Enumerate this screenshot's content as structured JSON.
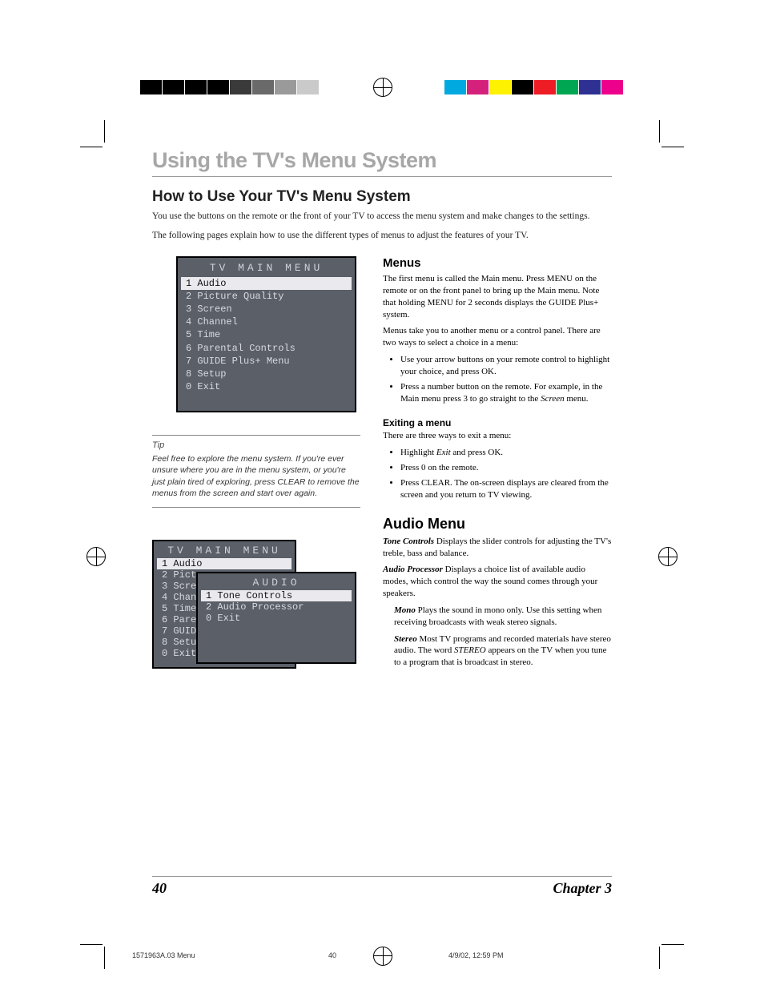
{
  "reg_colors_left": [
    "#000000",
    "#000000",
    "#000000",
    "#000000",
    "#3a3a3a",
    "#6a6a6a",
    "#9a9a9a",
    "#cacaca"
  ],
  "reg_colors_right": [
    "#00a9e0",
    "#d4227c",
    "#fff200",
    "#000000",
    "#ee1c25",
    "#00a651",
    "#2e3192",
    "#ec008c"
  ],
  "chapter_title": "Using the TV's Menu System",
  "section_title": "How to Use Your TV's Menu System",
  "intro_p1": "You use the buttons on the remote or the front of your TV to access the menu system and make changes to the settings.",
  "intro_p2": "The following pages explain how to use the different types of menus to adjust the features of your TV.",
  "osd1": {
    "title": "TV MAIN MENU",
    "items": [
      {
        "n": "1",
        "label": "Audio",
        "hl": true
      },
      {
        "n": "2",
        "label": "Picture Quality"
      },
      {
        "n": "3",
        "label": "Screen"
      },
      {
        "n": "4",
        "label": "Channel"
      },
      {
        "n": "5",
        "label": "Time"
      },
      {
        "n": "6",
        "label": "Parental Controls"
      },
      {
        "n": "7",
        "label": "GUIDE Plus+ Menu"
      },
      {
        "n": "8",
        "label": "Setup"
      },
      {
        "n": "0",
        "label": "Exit"
      }
    ]
  },
  "tip_label": "Tip",
  "tip_text": "Feel free to explore the menu system. If you're ever unsure where you are in the menu system, or you're just plain tired of exploring, press CLEAR to remove the menus from the screen and start over again.",
  "osd2_back": {
    "title": "TV MAIN MENU",
    "items": [
      {
        "n": "1",
        "label": "Audio",
        "hl": true
      },
      {
        "n": "2",
        "label": "Pictu"
      },
      {
        "n": "3",
        "label": "Scree"
      },
      {
        "n": "4",
        "label": "Chann"
      },
      {
        "n": "5",
        "label": "Time"
      },
      {
        "n": "6",
        "label": "Paren"
      },
      {
        "n": "7",
        "label": "GUIDE"
      },
      {
        "n": "8",
        "label": "Setup"
      },
      {
        "n": "0",
        "label": "Exit"
      }
    ]
  },
  "osd2_front": {
    "title": "AUDIO",
    "items": [
      {
        "n": "1",
        "label": "Tone Controls",
        "hl": true
      },
      {
        "n": "2",
        "label": "Audio Processor"
      },
      {
        "n": "0",
        "label": "Exit"
      }
    ]
  },
  "menus_h": "Menus",
  "menus_p1": "The first menu is called the Main menu. Press MENU on the remote or on the front panel to bring up the Main menu. Note that holding MENU for 2 seconds displays the GUIDE Plus+ system.",
  "menus_p2": "Menus take you to another menu or a control panel. There are two ways to select a choice in a menu:",
  "menus_li1": "Use your arrow buttons on your remote control to highlight your choice, and press OK.",
  "menus_li2_a": "Press a number button on the remote. For example, in the Main menu press 3 to go straight to the ",
  "menus_li2_em": "Screen",
  "menus_li2_b": " menu.",
  "exit_h": "Exiting a menu",
  "exit_p": "There are three ways to exit a menu:",
  "exit_li1_a": "Highlight ",
  "exit_li1_em": "Exit",
  "exit_li1_b": " and press OK.",
  "exit_li2": "Press 0 on the remote.",
  "exit_li3": "Press CLEAR. The on-screen displays are cleared from the screen and you return to TV viewing.",
  "audio_h": "Audio Menu",
  "tone_term": "Tone Controls",
  "tone_txt": "   Displays the slider controls for adjusting the TV's treble, bass and balance.",
  "proc_term": "Audio Processor",
  "proc_txt": "   Displays a choice list of available audio modes, which control the way the sound comes through your speakers.",
  "mono_term": "Mono",
  "mono_txt": "   Plays the sound in mono only. Use this setting when receiving broadcasts with weak stereo signals.",
  "stereo_term": "Stereo",
  "stereo_txt_a": "   Most TV programs and recorded materials have stereo audio. The word ",
  "stereo_em": "STEREO",
  "stereo_txt_b": " appears on the TV when you tune to a program that is broadcast in stereo.",
  "page_num": "40",
  "chapter_label": "Chapter 3",
  "print_file": "1571963A.03 Menu",
  "print_page": "40",
  "print_date": "4/9/02, 12:59 PM"
}
